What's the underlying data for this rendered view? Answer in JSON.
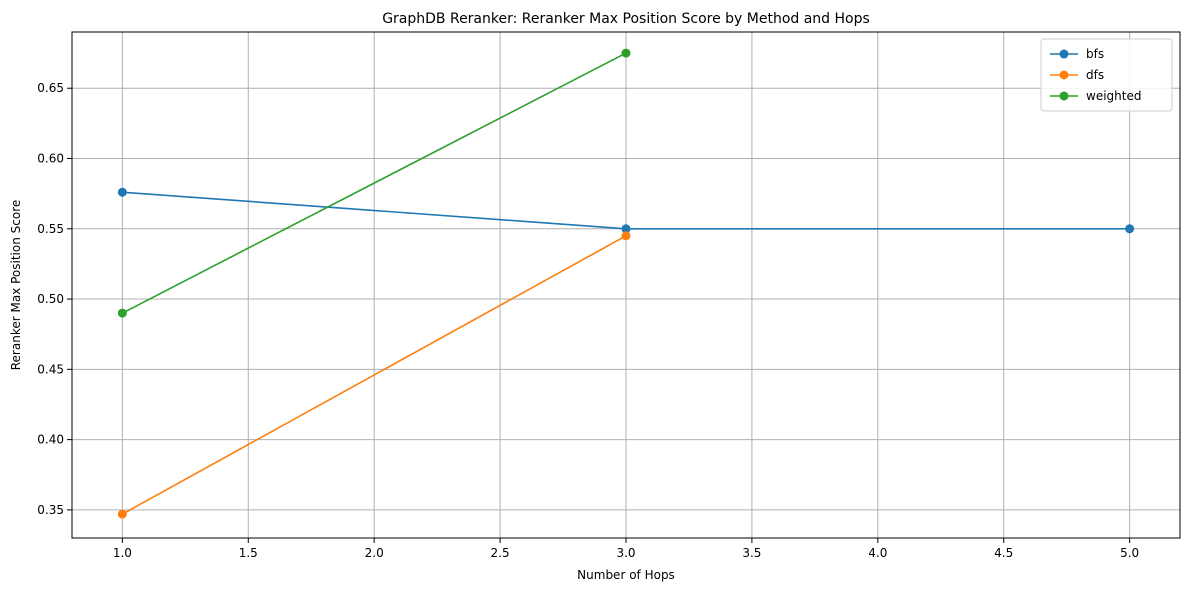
{
  "chart_data": {
    "type": "line",
    "title": "GraphDB Reranker: Reranker Max Position Score by Method and Hops",
    "xlabel": "Number of Hops",
    "ylabel": "Reranker Max Position Score",
    "xlim": [
      0.8,
      5.2
    ],
    "ylim": [
      0.33,
      0.69
    ],
    "xticks": [
      1.0,
      1.5,
      2.0,
      2.5,
      3.0,
      3.5,
      4.0,
      4.5,
      5.0
    ],
    "xtick_labels": [
      "1.0",
      "1.5",
      "2.0",
      "2.5",
      "3.0",
      "3.5",
      "4.0",
      "4.5",
      "5.0"
    ],
    "yticks": [
      0.35,
      0.4,
      0.45,
      0.5,
      0.55,
      0.6,
      0.65
    ],
    "ytick_labels": [
      "0.35",
      "0.40",
      "0.45",
      "0.50",
      "0.55",
      "0.60",
      "0.65"
    ],
    "grid": true,
    "legend_position": "top-right",
    "series": [
      {
        "name": "bfs",
        "color": "#1f77b4",
        "x": [
          1,
          3,
          5
        ],
        "y": [
          0.576,
          0.55,
          0.55
        ]
      },
      {
        "name": "dfs",
        "color": "#ff7f0e",
        "x": [
          1,
          3
        ],
        "y": [
          0.347,
          0.545
        ]
      },
      {
        "name": "weighted",
        "color": "#2ca02c",
        "x": [
          1,
          3
        ],
        "y": [
          0.49,
          0.675
        ]
      }
    ]
  }
}
